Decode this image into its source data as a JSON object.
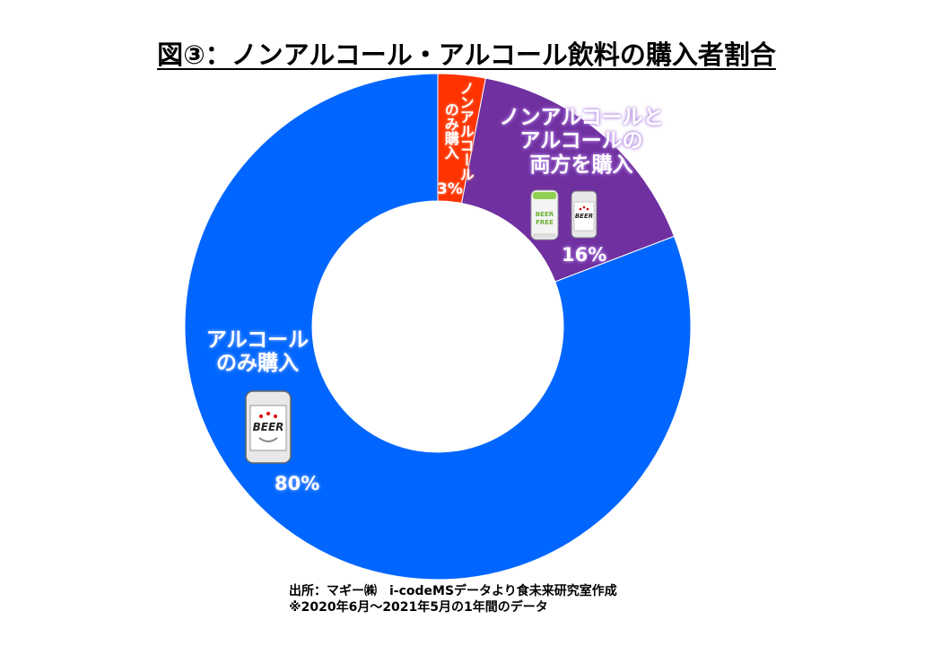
{
  "chart_data": {
    "type": "pie",
    "variant": "donut",
    "title": "図③：ノンアルコール・アルコール飲料の購入者割合",
    "slices": [
      {
        "label": "ノンアルコールのみ購入",
        "label_lines": [
          "ノンアルコール",
          "のみ購入"
        ],
        "value": 3,
        "value_label": "3%",
        "color": "#FF3300"
      },
      {
        "label": "ノンアルコールとアルコールの両方を購入",
        "label_lines": [
          "ノンアルコールと",
          "アルコールの",
          "両方を購入"
        ],
        "value": 16,
        "value_label": "16%",
        "color": "#7030A0"
      },
      {
        "label": "アルコールのみ購入",
        "label_lines": [
          "アルコール",
          "のみ購入"
        ],
        "value": 80,
        "value_label": "80%",
        "color": "#0066FF"
      }
    ],
    "start_angle": "top",
    "direction": "clockwise",
    "icons": {
      "nonalcohol_can_text": [
        "BEER",
        "FREE"
      ],
      "beer_can_text": "BEER"
    }
  },
  "source": {
    "line1": "出所：マギー㈱　i-codeMSデータより食未来研究室作成",
    "line2": "※2020年6月～2021年5月の1年間のデータ"
  }
}
